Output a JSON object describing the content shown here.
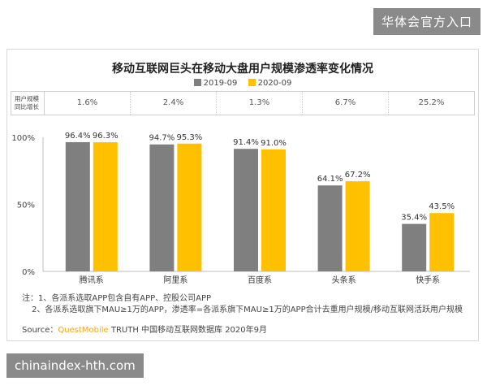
{
  "header": {
    "badge": "华体会官方入口"
  },
  "footer": {
    "badge": "chinaindex-hth.com"
  },
  "chart": {
    "growth_label_line1": "用户规模",
    "growth_label_line2": "同比增长",
    "growth": [
      "1.6%",
      "2.4%",
      "1.3%",
      "6.7%",
      "25.2%"
    ],
    "notes": [
      "注：1、各派系选取APP包含自有APP、控股公司APP",
      "2、各派系选取旗下MAU≥1万的APP，渗透率=各派系旗下MAU≥1万的APP合计去重用户规模/移动互联网活跃用户规模"
    ],
    "source_prefix": "Source：",
    "source_brand": "QuestMobile",
    "source_rest": " TRUTH 中国移动互联网数据库 2020年9月"
  },
  "chart_data": {
    "type": "bar",
    "title": "移动互联网巨头在移动大盘用户规模渗透率变化情况",
    "categories": [
      "腾讯系",
      "阿里系",
      "百度系",
      "头条系",
      "快手系"
    ],
    "series": [
      {
        "name": "2019-09",
        "values": [
          96.4,
          94.7,
          91.4,
          64.1,
          35.4
        ],
        "color": "#7f7f7f"
      },
      {
        "name": "2020-09",
        "values": [
          96.3,
          95.3,
          91.0,
          67.2,
          43.5
        ],
        "color": "#ffc000"
      }
    ],
    "ylim": [
      0,
      100
    ],
    "yticks": [
      "0%",
      "50%",
      "100%"
    ],
    "value_suffix": "%",
    "xlabel": "",
    "ylabel": "",
    "grid": false,
    "legend": "top"
  }
}
